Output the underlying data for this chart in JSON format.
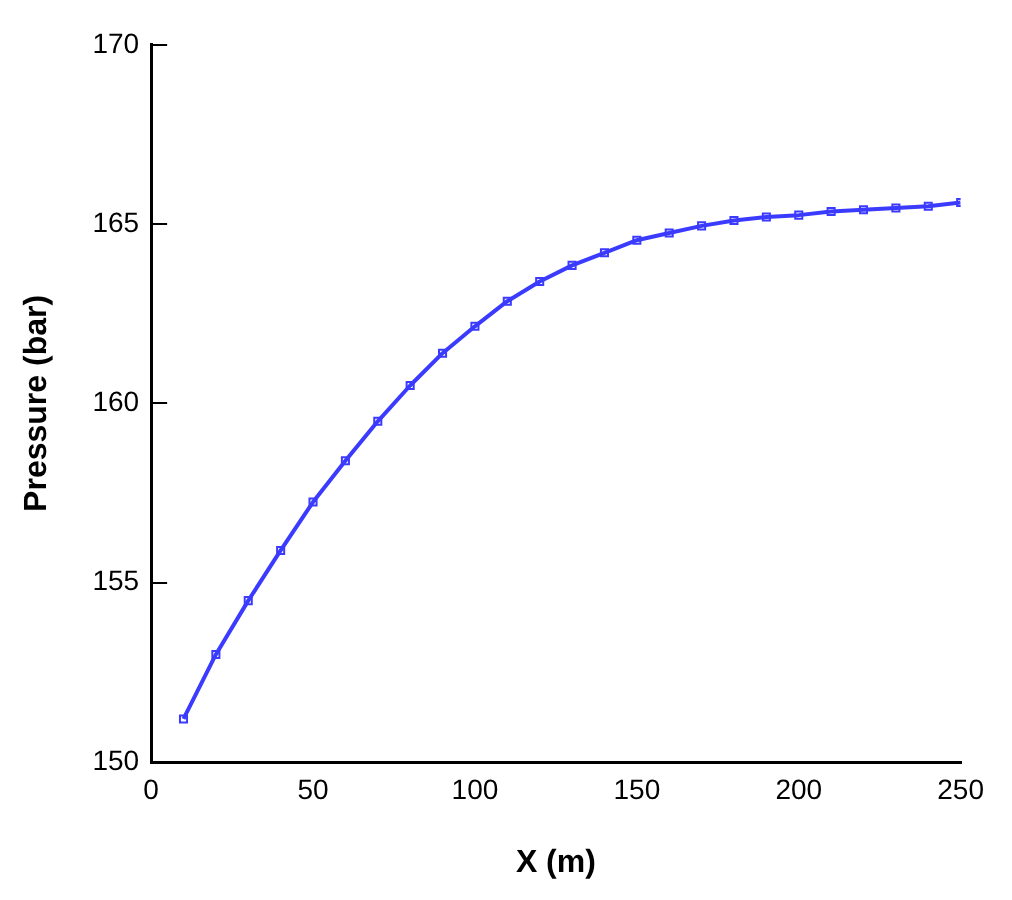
{
  "chart_data": {
    "type": "line",
    "xlabel": "X (m)",
    "ylabel": "Pressure (bar)",
    "x": [
      10,
      20,
      30,
      40,
      50,
      60,
      70,
      80,
      90,
      100,
      110,
      120,
      130,
      140,
      150,
      160,
      170,
      180,
      190,
      200,
      210,
      220,
      230,
      240,
      250
    ],
    "series": [
      {
        "color": "#3b3bff",
        "values": [
          151.2,
          153.0,
          154.5,
          155.9,
          157.25,
          158.4,
          159.5,
          160.5,
          161.4,
          162.15,
          162.85,
          163.4,
          163.85,
          164.2,
          164.55,
          164.75,
          164.95,
          165.1,
          165.2,
          165.25,
          165.35,
          165.4,
          165.45,
          165.5,
          165.6
        ]
      }
    ],
    "xlim": [
      0,
      250
    ],
    "xticks": [
      0,
      50,
      100,
      150,
      200,
      250
    ],
    "ylim": [
      150,
      170
    ],
    "yticks": [
      150,
      155,
      160,
      165,
      170
    ],
    "grid": false,
    "legend": false,
    "marker": "square",
    "line_style": "solid"
  }
}
